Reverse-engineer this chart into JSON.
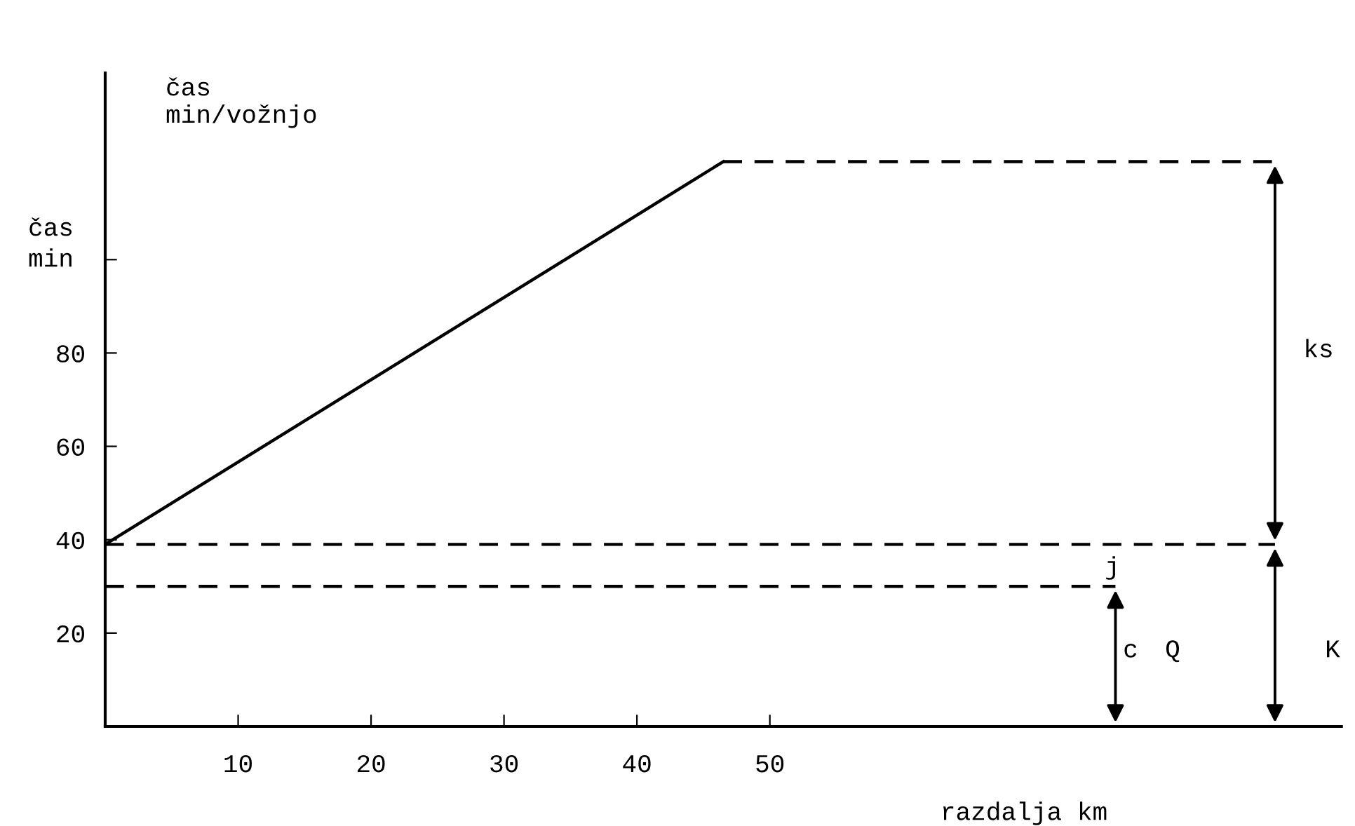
{
  "chart_data": {
    "type": "line",
    "ylabel": "čas\nmin",
    "xlabel": "razdalja km",
    "xlim": [
      0,
      93
    ],
    "ylim": [
      0,
      140
    ],
    "xticks": [
      10,
      20,
      30,
      40,
      50
    ],
    "yticks": [
      20,
      40,
      60,
      80,
      {
        "value": 100,
        "label": null
      }
    ],
    "grid": false,
    "legend": false,
    "marker": "none",
    "series": [
      {
        "color": "#000000",
        "line_style": "solid",
        "x": [
          0,
          46.5
        ],
        "values": [
          39,
          121
        ]
      },
      {
        "color": "#000000",
        "line_style": "dashed",
        "x": [
          46.5,
          88
        ],
        "values": [
          121,
          121
        ]
      },
      {
        "color": "#000000",
        "line_style": "dashed",
        "x": [
          0,
          88
        ],
        "values": [
          39,
          39
        ]
      },
      {
        "color": "#000000",
        "line_style": "dashed",
        "x": [
          0,
          76
        ],
        "values": [
          30,
          30
        ]
      }
    ],
    "annotations": [
      "čas\nmin/vožnjo",
      "ks",
      "j",
      "c",
      "Q",
      "K"
    ]
  }
}
